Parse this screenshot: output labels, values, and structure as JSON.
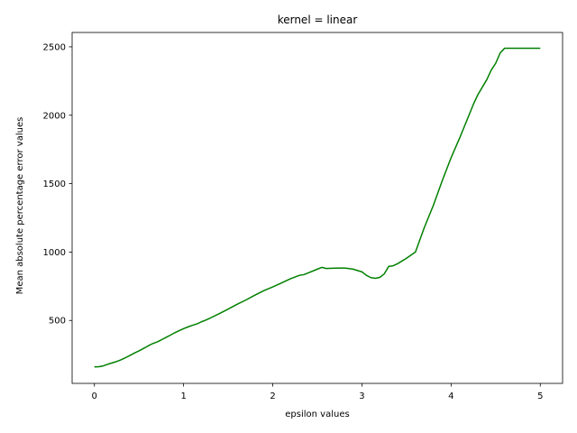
{
  "chart_data": {
    "type": "line",
    "title": "kernel = linear",
    "xlabel": "epsilon values",
    "ylabel": "Mean absolute percentage error values",
    "xlim": [
      -0.25,
      5.25
    ],
    "ylim": [
      40,
      2605
    ],
    "xticks": [
      0,
      1,
      2,
      3,
      4,
      5
    ],
    "xtick_labels": [
      "0",
      "1",
      "2",
      "3",
      "4",
      "5"
    ],
    "yticks": [
      500,
      1000,
      1500,
      2000,
      2500
    ],
    "ytick_labels": [
      "500",
      "1000",
      "1500",
      "2000",
      "2500"
    ],
    "grid": false,
    "series": [
      {
        "color": "#008000",
        "x": [
          0.0,
          0.05,
          0.1,
          0.15,
          0.2,
          0.25,
          0.3,
          0.35,
          0.4,
          0.45,
          0.5,
          0.55,
          0.6,
          0.65,
          0.7,
          0.75,
          0.8,
          0.85,
          0.9,
          0.95,
          1.0,
          1.05,
          1.1,
          1.15,
          1.2,
          1.25,
          1.3,
          1.4,
          1.5,
          1.6,
          1.7,
          1.8,
          1.9,
          2.0,
          2.1,
          2.2,
          2.3,
          2.35,
          2.4,
          2.5,
          2.55,
          2.6,
          2.7,
          2.8,
          2.85,
          2.9,
          3.0,
          3.05,
          3.1,
          3.15,
          3.2,
          3.25,
          3.3,
          3.35,
          3.4,
          3.5,
          3.6,
          3.65,
          3.7,
          3.8,
          3.9,
          4.0,
          4.1,
          4.2,
          4.25,
          4.3,
          4.4,
          4.45,
          4.5,
          4.55,
          4.6,
          4.7,
          4.8,
          4.9,
          5.0
        ],
        "y": [
          160,
          162,
          168,
          180,
          190,
          200,
          213,
          228,
          245,
          262,
          278,
          295,
          313,
          330,
          342,
          358,
          375,
          392,
          410,
          425,
          440,
          453,
          465,
          475,
          490,
          503,
          518,
          550,
          583,
          618,
          650,
          685,
          718,
          745,
          775,
          805,
          830,
          835,
          848,
          875,
          888,
          880,
          882,
          883,
          880,
          875,
          855,
          830,
          813,
          808,
          815,
          840,
          895,
          900,
          915,
          955,
          1000,
          1090,
          1180,
          1340,
          1520,
          1690,
          1840,
          2000,
          2080,
          2150,
          2260,
          2330,
          2380,
          2455,
          2490,
          2490,
          2490,
          2490,
          2490
        ]
      }
    ]
  }
}
